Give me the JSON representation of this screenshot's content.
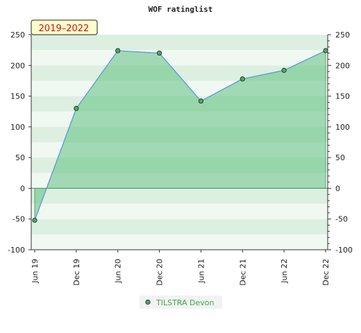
{
  "chart_data": {
    "type": "area",
    "title": "WOF ratinglist",
    "badge": "2019–2022",
    "xlabel": "",
    "ylabel": "",
    "categories": [
      "Jun 19",
      "Dec 19",
      "Jun 20",
      "Dec 20",
      "Jun 21",
      "Dec 21",
      "Jun 22",
      "Dec 22"
    ],
    "series": [
      {
        "name": "TILSTRA Devon",
        "values": [
          -52,
          130,
          224,
          220,
          142,
          178,
          192,
          224
        ]
      }
    ],
    "ylim": [
      -100,
      250
    ],
    "yticks": [
      "250",
      "200",
      "150",
      "100",
      "50",
      "0",
      "-50",
      "-100"
    ],
    "grid": true,
    "legend_position": "bottom-center",
    "colors": {
      "line": "#5b9bd5",
      "fill": "#5fbf7f",
      "marker": "#4ea660",
      "band_light": "#f0f8f2",
      "band_dark": "#dcefe0",
      "badge_bg": "#ffffcc",
      "badge_text": "#cc1111"
    }
  }
}
